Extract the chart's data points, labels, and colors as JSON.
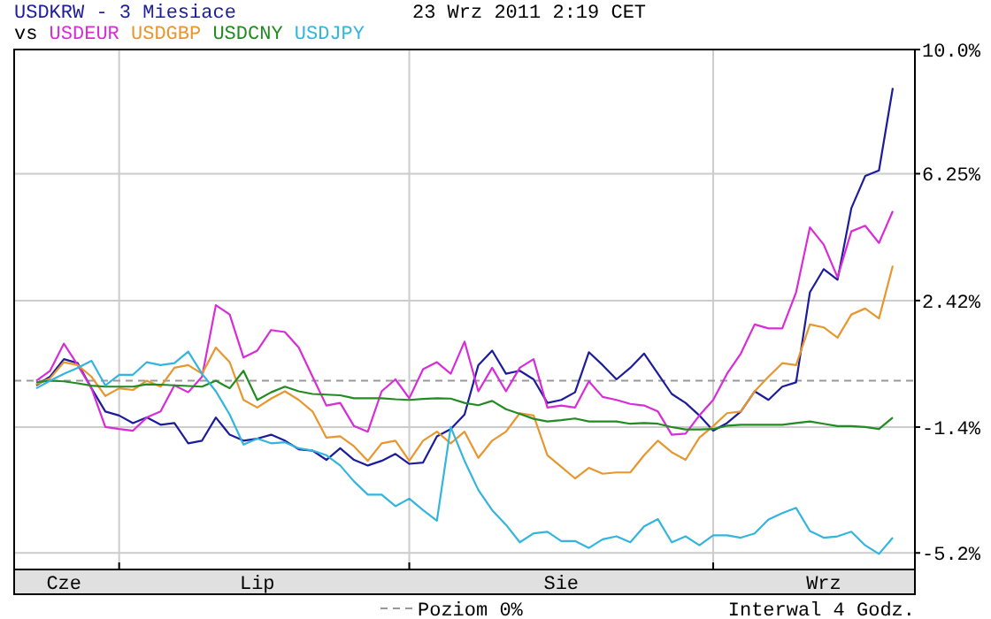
{
  "chart_data": {
    "type": "line",
    "title": "USDKRW - 3 Miesiace",
    "subtitle": "23 Wrz 2011 2:19 CET",
    "legend_title": "vs",
    "legend": "bottom",
    "grid": "y",
    "marker": "none",
    "line_style": "solid",
    "categories": [
      null,
      null,
      "Cze",
      null,
      null,
      null,
      null,
      null,
      null,
      null,
      null,
      null,
      null,
      null,
      null,
      null,
      "Lip",
      null,
      null,
      null,
      null,
      null,
      null,
      null,
      null,
      null,
      null,
      null,
      null,
      null,
      null,
      null,
      null,
      null,
      null,
      null,
      null,
      null,
      "Sie",
      null,
      null,
      null,
      null,
      null,
      null,
      null,
      null,
      null,
      null,
      null,
      null,
      null,
      null,
      null,
      null,
      null,
      null,
      "Wrz",
      null,
      null,
      null,
      null,
      null
    ],
    "ylim": [
      -5.7,
      10.0
    ],
    "yticks": [
      {
        "value": 10,
        "label": "10.0%"
      },
      {
        "value": 6.25,
        "label": "6.25%"
      },
      {
        "value": 2.42,
        "label": "2.42%"
      },
      {
        "value": -1.4,
        "label": "-1.4%"
      },
      {
        "value": -5.2,
        "label": "-5.2%"
      }
    ],
    "ref_lines": [
      {
        "axis": "y",
        "value": 0,
        "label": "Poziom 0%",
        "color": "#999999",
        "line_style": "dashed"
      }
    ],
    "annotations": [
      "Interwal 4 Godz."
    ],
    "series": [
      {
        "color": "#1c1c9c",
        "values": [
          -0.14,
          0.12,
          0.65,
          0.53,
          -0.23,
          -0.93,
          -1.05,
          -1.28,
          -1.11,
          -1.33,
          -1.28,
          -1.89,
          -1.81,
          -1.11,
          -1.63,
          -1.81,
          -1.75,
          -1.63,
          -1.81,
          -2.07,
          -2.11,
          -2.39,
          -2.04,
          -2.39,
          -2.56,
          -2.42,
          -2.21,
          -2.51,
          -2.47,
          -1.68,
          -1.46,
          -1.02,
          0.47,
          0.91,
          0.21,
          0.3,
          0.04,
          -0.67,
          -0.58,
          -0.35,
          0.86,
          0.47,
          0.04,
          0.39,
          0.82,
          0.21,
          -0.4,
          -0.67,
          -1.05,
          -1.51,
          -1.28,
          -0.93,
          -0.32,
          -0.58,
          -0.18,
          -0.05,
          2.67,
          3.37,
          3.05,
          5.21,
          6.18,
          6.35,
          8.84
        ]
      },
      {
        "name": "USDEUR",
        "color": "#d82cd8",
        "values": [
          0,
          0.3,
          1.12,
          0.47,
          -0.23,
          -1.4,
          -1.46,
          -1.51,
          -1.11,
          -0.93,
          -0.14,
          -0.35,
          0.12,
          2.28,
          2.0,
          0.7,
          0.91,
          1.53,
          1.47,
          1.0,
          0.12,
          -0.75,
          -0.67,
          -1.37,
          -1.54,
          -0.32,
          0.04,
          -0.53,
          0.35,
          0.56,
          0.21,
          1.18,
          -0.32,
          0.39,
          -0.32,
          0.39,
          0.65,
          -0.81,
          -0.75,
          -0.81,
          -0.02,
          -0.49,
          -0.58,
          -0.7,
          -0.75,
          -0.93,
          -1.63,
          -1.6,
          -1.05,
          -0.58,
          0.21,
          0.82,
          1.7,
          1.58,
          1.58,
          2.67,
          4.63,
          4.11,
          3.12,
          4.51,
          4.68,
          4.16,
          5.12
        ]
      },
      {
        "name": "USDGBP",
        "color": "#e8962e",
        "values": [
          -0.11,
          0.07,
          0.56,
          0.47,
          0.12,
          -0.46,
          -0.23,
          -0.28,
          0,
          -0.18,
          0.39,
          0.47,
          0.21,
          1.0,
          0.56,
          -0.58,
          -0.81,
          -0.54,
          -0.32,
          -0.58,
          -0.93,
          -1.72,
          -1.68,
          -1.98,
          -2.42,
          -1.89,
          -1.81,
          -2.42,
          -1.81,
          -1.54,
          -1.89,
          -1.54,
          -2.33,
          -1.81,
          -1.54,
          -0.98,
          -1.05,
          -2.25,
          -2.6,
          -2.95,
          -2.63,
          -2.81,
          -2.77,
          -2.77,
          -2.25,
          -1.81,
          -2.16,
          -2.39,
          -1.72,
          -1.37,
          -0.98,
          -0.93,
          -0.32,
          0.12,
          0.53,
          0.47,
          1.7,
          1.61,
          1.3,
          2.0,
          2.18,
          1.88,
          3.47
        ]
      },
      {
        "name": "USDCNY",
        "color": "#228b22",
        "values": [
          -0.05,
          0,
          -0.02,
          -0.08,
          -0.15,
          -0.18,
          -0.18,
          -0.18,
          -0.11,
          -0.12,
          -0.14,
          -0.16,
          -0.18,
          0,
          -0.23,
          0.3,
          -0.58,
          -0.35,
          -0.18,
          -0.32,
          -0.4,
          -0.42,
          -0.44,
          -0.53,
          -0.53,
          -0.53,
          -0.56,
          -0.58,
          -0.55,
          -0.53,
          -0.54,
          -0.67,
          -0.74,
          -0.61,
          -0.86,
          -1.0,
          -1.15,
          -1.23,
          -1.19,
          -1.14,
          -1.23,
          -1.23,
          -1.23,
          -1.3,
          -1.28,
          -1.3,
          -1.4,
          -1.47,
          -1.47,
          -1.46,
          -1.36,
          -1.33,
          -1.33,
          -1.33,
          -1.33,
          -1.28,
          -1.23,
          -1.3,
          -1.37,
          -1.37,
          -1.4,
          -1.46,
          -1.11
        ]
      },
      {
        "name": "USDJPY",
        "color": "#33b5dd",
        "values": [
          -0.23,
          0,
          0.21,
          0.39,
          0.6,
          -0.14,
          0.18,
          0.18,
          0.56,
          0.47,
          0.53,
          0.88,
          0.21,
          -0.32,
          -1.02,
          -1.93,
          -1.75,
          -1.89,
          -1.86,
          -2.04,
          -2.11,
          -2.25,
          -2.56,
          -3.04,
          -3.44,
          -3.44,
          -3.79,
          -3.56,
          -3.91,
          -4.23,
          -1.4,
          -2.42,
          -3.3,
          -3.91,
          -4.35,
          -4.88,
          -4.61,
          -4.56,
          -4.84,
          -4.84,
          -5.05,
          -4.79,
          -4.7,
          -4.88,
          -4.4,
          -4.18,
          -4.88,
          -4.7,
          -4.97,
          -4.67,
          -4.67,
          -4.74,
          -4.61,
          -4.19,
          -4.0,
          -3.84,
          -4.54,
          -4.74,
          -4.7,
          -4.56,
          -4.97,
          -5.23,
          -4.74
        ]
      }
    ]
  }
}
